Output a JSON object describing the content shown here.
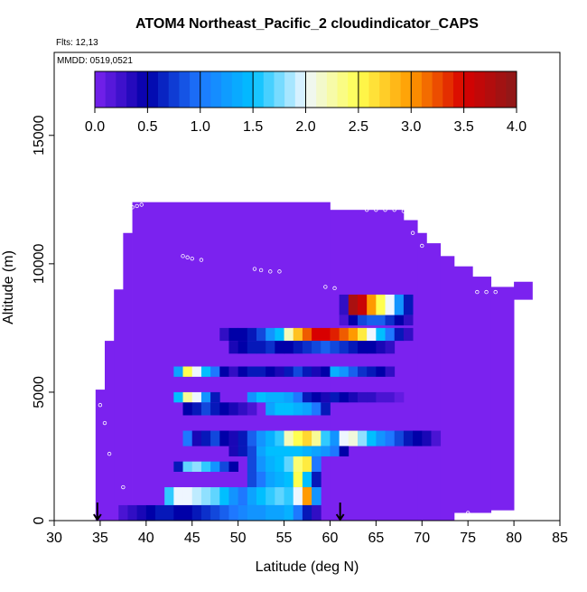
{
  "chart_data": {
    "type": "heatmap",
    "title": "ATOM4 Northeast_Pacific_2 cloudindicator_CAPS",
    "subtitle": "Flts: 12,13",
    "annotation": "MMDD: 0519,0521",
    "x_label": "Latitude (deg N)",
    "y_label": "Altitude (m)",
    "xlim": [
      30,
      85
    ],
    "xticks": [
      30,
      35,
      40,
      45,
      50,
      55,
      60,
      65,
      70,
      75,
      80,
      85
    ],
    "ylim": [
      0,
      18230
    ],
    "yticks": [
      0,
      5000,
      10000,
      15000
    ],
    "colorbar": {
      "lim": [
        0,
        4
      ],
      "ticks": [
        {
          "value": 0,
          "label": "0.0"
        },
        0.5,
        {
          "value": 1,
          "label": "1.0"
        },
        1.5,
        {
          "value": 2,
          "label": "2.0"
        },
        2.5,
        {
          "value": 3,
          "label": "3.0"
        },
        3.5,
        {
          "value": 4,
          "label": "4.0"
        }
      ],
      "colors": [
        "#7b22ef",
        "#0000a8",
        "#1e78ff",
        "#00bfff",
        "#eef6ff",
        "#ffff50",
        "#ff9a00",
        "#d80000",
        "#8b1a1a"
      ]
    },
    "bands": [
      {
        "lat": [
          34.5,
          35.5
        ],
        "alt": [
          0,
          5100
        ],
        "values": [
          0
        ]
      },
      {
        "lat": [
          35.5,
          36.5
        ],
        "alt": [
          0,
          7000
        ],
        "values": [
          0
        ]
      },
      {
        "lat": [
          36.5,
          37.5
        ],
        "alt": [
          0,
          9000
        ],
        "values": [
          0
        ]
      },
      {
        "lat": [
          37.5,
          38.5
        ],
        "alt": [
          0,
          11200
        ],
        "values": [
          0
        ]
      },
      {
        "lat": [
          38.5,
          60
        ],
        "alt": [
          0,
          12400
        ],
        "values": [
          0
        ]
      },
      {
        "lat": [
          60,
          68
        ],
        "alt": [
          0,
          12100
        ],
        "values": [
          0
        ]
      },
      {
        "lat": [
          68,
          69.5
        ],
        "alt": [
          0,
          11700
        ],
        "values": [
          0
        ]
      },
      {
        "lat": [
          69.5,
          70.5
        ],
        "alt": [
          0,
          11200
        ],
        "values": [
          0
        ]
      },
      {
        "lat": [
          70.5,
          72
        ],
        "alt": [
          0,
          10800
        ],
        "values": [
          0
        ]
      },
      {
        "lat": [
          72,
          73.5
        ],
        "alt": [
          0,
          10300
        ],
        "values": [
          0
        ]
      },
      {
        "lat": [
          73.5,
          75.5
        ],
        "alt": [
          300,
          9900
        ],
        "values": [
          0
        ]
      },
      {
        "lat": [
          75.5,
          77.5
        ],
        "alt": [
          300,
          9500
        ],
        "values": [
          0
        ]
      },
      {
        "lat": [
          77.5,
          80
        ],
        "alt": [
          400,
          9100
        ],
        "values": [
          0
        ]
      },
      {
        "lat": [
          80,
          82
        ],
        "alt": [
          8600,
          9300
        ],
        "values": [
          0
        ]
      },
      {
        "lat": [
          61,
          69
        ],
        "alt": [
          8000,
          8800
        ],
        "values": [
          0.3,
          3.8,
          3.6,
          3.0,
          2.5,
          2.0,
          1.2,
          0.6
        ]
      },
      {
        "lat": [
          61,
          69
        ],
        "alt": [
          7600,
          8000
        ],
        "values": [
          0.2,
          0.5,
          0.8,
          0.9,
          0.9,
          0.7,
          0.5,
          0.3
        ]
      },
      {
        "lat": [
          48,
          69
        ],
        "alt": [
          7000,
          7500
        ],
        "values": [
          0.3,
          0.5,
          0.5,
          0.6,
          0.8,
          1.2,
          1.5,
          2.2,
          2.8,
          3.2,
          3.5,
          3.5,
          3.4,
          3.2,
          3.0,
          2.6,
          2.0,
          1.5,
          1.0,
          0.6,
          0.3
        ]
      },
      {
        "lat": [
          49,
          67
        ],
        "alt": [
          6500,
          7000
        ],
        "values": [
          0.4,
          0.5,
          0.6,
          0.6,
          0.7,
          0.5,
          0.5,
          0.6,
          0.7,
          0.8,
          0.9,
          0.8,
          0.7,
          0.6,
          0.5,
          0.5,
          0.4,
          0.3
        ]
      },
      {
        "lat": [
          43,
          49
        ],
        "alt": [
          5600,
          6000
        ],
        "values": [
          1.3,
          2.5,
          2.0,
          1.5,
          1.0,
          0.5
        ]
      },
      {
        "lat": [
          49,
          55
        ],
        "alt": [
          5600,
          6000
        ],
        "values": [
          0.3,
          0.5,
          0.6,
          0.6,
          0.5,
          0.4
        ]
      },
      {
        "lat": [
          55,
          60
        ],
        "alt": [
          5600,
          6000
        ],
        "values": [
          0.6,
          0.8,
          0.6,
          0.4,
          0.5
        ]
      },
      {
        "lat": [
          60,
          67
        ],
        "alt": [
          5600,
          6000
        ],
        "values": [
          1.4,
          1.2,
          0.9,
          0.7,
          0.6,
          0.5,
          0.3
        ]
      },
      {
        "lat": [
          43,
          48
        ],
        "alt": [
          4600,
          5000
        ],
        "values": [
          1.5,
          2.3,
          2.0,
          1.2,
          0.6
        ]
      },
      {
        "lat": [
          51,
          58
        ],
        "alt": [
          4600,
          5000
        ],
        "values": [
          1.2,
          1.5,
          1.4,
          1.4,
          1.3,
          1.0,
          0.6
        ]
      },
      {
        "lat": [
          58,
          68
        ],
        "alt": [
          4600,
          5000
        ],
        "values": [
          0.5,
          0.4,
          0.6,
          0.5,
          0.4,
          0.3,
          0.3,
          0.2,
          0.2,
          0.1
        ]
      },
      {
        "lat": [
          44,
          52
        ],
        "alt": [
          4100,
          4600
        ],
        "values": [
          0.5,
          0.6,
          0.8,
          0.6,
          0.5,
          0.4,
          0.3,
          0.2
        ]
      },
      {
        "lat": [
          53,
          60
        ],
        "alt": [
          4100,
          4600
        ],
        "values": [
          1.3,
          1.5,
          1.5,
          1.4,
          1.3,
          1.0,
          0.6
        ]
      },
      {
        "lat": [
          44,
          72
        ],
        "alt": [
          2900,
          3500
        ],
        "values": [
          1.0,
          0.4,
          0.6,
          0.8,
          0.5,
          0.4,
          0.6,
          0.9,
          1.2,
          1.4,
          1.6,
          2.2,
          2.5,
          2.7,
          2.3,
          1.6,
          1.2,
          2.0,
          2.1,
          1.8,
          1.5,
          1.2,
          1.0,
          0.8,
          0.6,
          0.5,
          0.4,
          0.2
        ]
      },
      {
        "lat": [
          49,
          62
        ],
        "alt": [
          2500,
          2900
        ],
        "values": [
          0.4,
          0.6,
          0.8,
          1.3,
          1.5,
          1.5,
          1.5,
          1.5,
          1.4,
          1.3,
          1.2,
          1.0,
          0.5
        ]
      },
      {
        "lat": [
          43,
          50
        ],
        "alt": [
          1900,
          2300
        ],
        "values": [
          0.6,
          1.7,
          1.8,
          1.6,
          1.2,
          0.8,
          0.5
        ]
      },
      {
        "lat": [
          51,
          59
        ],
        "alt": [
          1900,
          2500
        ],
        "values": [
          0.8,
          1.2,
          1.4,
          1.5,
          1.7,
          2.4,
          2.6,
          1.0
        ]
      },
      {
        "lat": [
          51,
          59
        ],
        "alt": [
          1300,
          1900
        ],
        "values": [
          0.8,
          1.0,
          1.3,
          1.4,
          1.5,
          2.5,
          1.5,
          0.6
        ]
      },
      {
        "lat": [
          42,
          50
        ],
        "alt": [
          600,
          1300
        ],
        "values": [
          1.6,
          2.0,
          2.0,
          1.9,
          1.8,
          1.7,
          1.5,
          1.2
        ]
      },
      {
        "lat": [
          50,
          59
        ],
        "alt": [
          600,
          1300
        ],
        "values": [
          1.0,
          1.3,
          1.5,
          1.6,
          1.7,
          1.6,
          2.0,
          3.0,
          1.2
        ]
      },
      {
        "lat": [
          37,
          59
        ],
        "alt": [
          0,
          600
        ],
        "values": [
          0.2,
          0.3,
          0.4,
          0.5,
          0.6,
          0.6,
          0.5,
          0.5,
          0.6,
          0.7,
          0.8,
          0.9,
          1.0,
          1.1,
          1.2,
          1.2,
          1.3,
          1.3,
          1.4,
          1.0,
          0.6,
          0.3
        ]
      }
    ],
    "points": {
      "lat": [
        38.5,
        39,
        39.5,
        44,
        44.5,
        45,
        46,
        51.8,
        52.5,
        53.5,
        54.5,
        59.5,
        60.5,
        64,
        65,
        66,
        67,
        68,
        69,
        70,
        76,
        77,
        78,
        35,
        35.5,
        36,
        37.5,
        75,
        78,
        80
      ],
      "alt": [
        12200,
        12250,
        12300,
        10300,
        10250,
        10200,
        10150,
        9800,
        9750,
        9700,
        9700,
        9100,
        9050,
        12100,
        12100,
        12100,
        12100,
        12050,
        11200,
        10700,
        8900,
        8900,
        8900,
        4500,
        3800,
        2600,
        1300,
        300,
        300,
        300
      ]
    },
    "flight_markers": [
      34.7,
      61.1
    ]
  }
}
